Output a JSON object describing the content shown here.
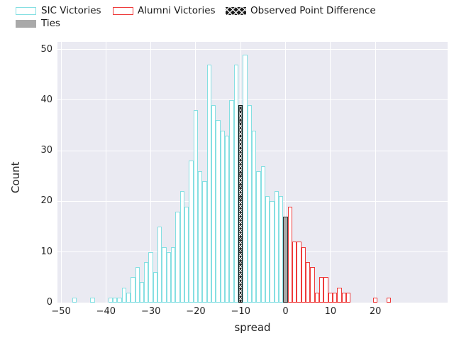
{
  "legend": {
    "items": [
      {
        "label": "SIC Victories",
        "swatch": "sic"
      },
      {
        "label": "Alumni Victories",
        "swatch": "alumni"
      },
      {
        "label": "Observed Point Difference",
        "swatch": "observed"
      },
      {
        "label": "Ties",
        "swatch": "ties"
      }
    ]
  },
  "colors": {
    "sic_edge": "#85dfe2",
    "alumni_edge": "#ee3b3b",
    "ties_fill": "#a9a9a9",
    "ties_edge": "#333333",
    "observed_fill": "#262626",
    "plot_background": "#eaeaf2",
    "gridline": "#ffffff",
    "text": "#262626"
  },
  "chart_data": {
    "type": "bar",
    "subtype": "histogram",
    "title": "",
    "xlabel": "spread",
    "ylabel": "Count",
    "xlim": [
      -50.8,
      36.1
    ],
    "ylim": [
      0,
      51.5
    ],
    "xticks": [
      -50,
      -40,
      -30,
      -20,
      -10,
      0,
      10,
      20
    ],
    "yticks": [
      0,
      10,
      20,
      30,
      40,
      50
    ],
    "grid": true,
    "legend_position": "top-left outside",
    "bin_width": 1,
    "series": [
      {
        "name": "SIC Victories",
        "style": "sic",
        "bins": [
          [
            -47,
            1
          ],
          [
            -43,
            1
          ],
          [
            -39,
            1
          ],
          [
            -38,
            1
          ],
          [
            -37,
            1
          ],
          [
            -36,
            3
          ],
          [
            -35,
            2
          ],
          [
            -34,
            5
          ],
          [
            -33,
            7
          ],
          [
            -32,
            4
          ],
          [
            -31,
            8
          ],
          [
            -30,
            10
          ],
          [
            -29,
            6
          ],
          [
            -28,
            15
          ],
          [
            -27,
            11
          ],
          [
            -26,
            10
          ],
          [
            -25,
            11
          ],
          [
            -24,
            18
          ],
          [
            -23,
            22
          ],
          [
            -22,
            19
          ],
          [
            -21,
            28
          ],
          [
            -20,
            38
          ],
          [
            -19,
            26
          ],
          [
            -18,
            24
          ],
          [
            -17,
            47
          ],
          [
            -16,
            39
          ],
          [
            -15,
            36
          ],
          [
            -14,
            34
          ],
          [
            -13,
            33
          ],
          [
            -12,
            40
          ],
          [
            -11,
            47
          ],
          [
            -9,
            49
          ],
          [
            -8,
            39
          ],
          [
            -7,
            34
          ],
          [
            -6,
            26
          ],
          [
            -5,
            27
          ],
          [
            -4,
            21
          ],
          [
            -3,
            20
          ],
          [
            -2,
            22
          ],
          [
            -1,
            21
          ]
        ]
      },
      {
        "name": "Ties",
        "style": "ties",
        "bins": [
          [
            0,
            17
          ]
        ]
      },
      {
        "name": "Alumni Victories",
        "style": "alumni",
        "bins": [
          [
            1,
            19
          ],
          [
            2,
            12
          ],
          [
            3,
            12
          ],
          [
            4,
            11
          ],
          [
            5,
            8
          ],
          [
            6,
            7
          ],
          [
            7,
            2
          ],
          [
            8,
            5
          ],
          [
            9,
            5
          ],
          [
            10,
            2
          ],
          [
            11,
            2
          ],
          [
            12,
            3
          ],
          [
            13,
            2
          ],
          [
            14,
            2
          ],
          [
            20,
            1
          ],
          [
            23,
            1
          ]
        ]
      },
      {
        "name": "Observed Point Difference",
        "style": "observed",
        "hatch": "x",
        "bins": [
          [
            -10,
            39
          ]
        ]
      }
    ]
  }
}
